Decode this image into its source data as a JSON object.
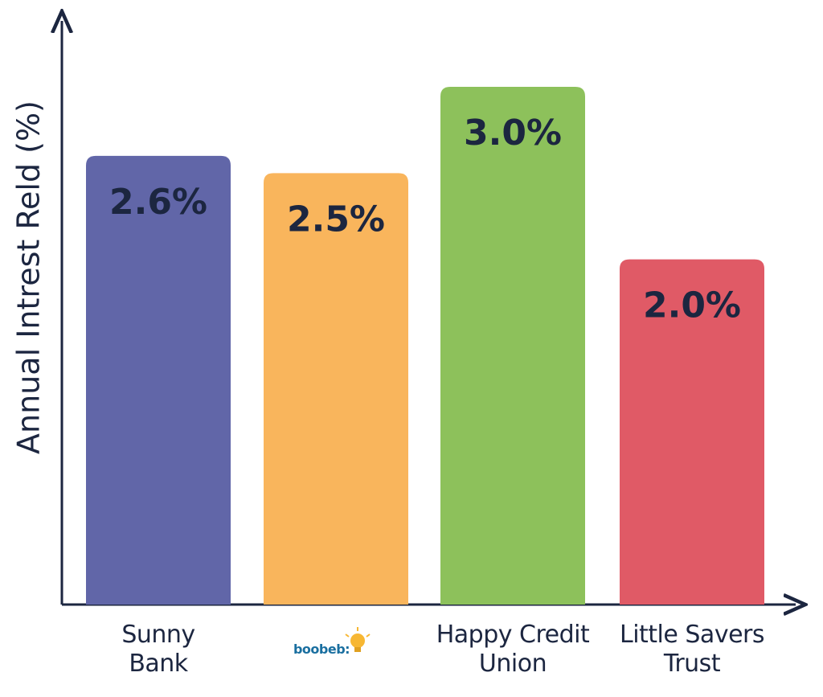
{
  "chart_data": {
    "type": "bar",
    "y_label": "Annual Intrest Reld (%)",
    "categories": [
      "Sunny Bank",
      "boobeb:",
      "Happy Credit Union",
      "Little Savers Trust"
    ],
    "values": [
      2.6,
      2.5,
      3.0,
      2.0
    ],
    "value_labels": [
      "2.6%",
      "2.5%",
      "3.0%",
      "2.0%"
    ],
    "colors": [
      "#6166a8",
      "#f9b55c",
      "#8dc15b",
      "#e05a66"
    ]
  }
}
